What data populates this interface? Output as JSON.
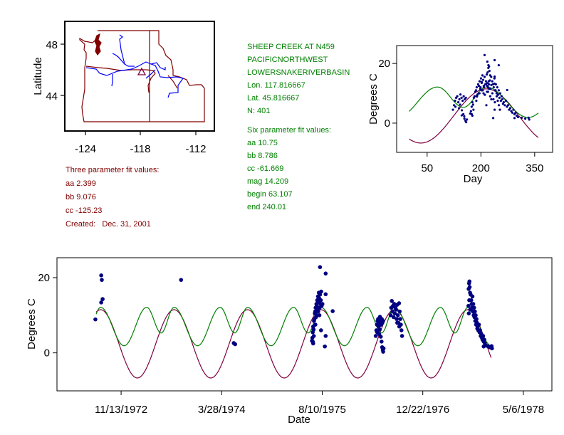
{
  "colors": {
    "three_fit": "#800040",
    "six_fit": "#008000",
    "points": "#000080",
    "info_red": "#800000",
    "info_green": "#008000",
    "map_border": "#800000",
    "map_river": "#0000ff"
  },
  "map": {
    "ylabel": "Latitude",
    "xticks": [
      "-124",
      "-118",
      "-112"
    ],
    "yticks": [
      "48",
      "44"
    ],
    "site_marker": "triangle"
  },
  "site_info": {
    "lines": [
      "SHEEP CREEK AT N459",
      "PACIFICNORTHWEST",
      "LOWERSNAKERIVERBASIN",
      "Lon. 117.816667",
      "Lat. 45.816667",
      "N: 401"
    ],
    "six_title": "Six parameter fit values:",
    "six_params": [
      "aa 10.75",
      "bb 8.786",
      "cc -61.669",
      "mag 14.209",
      "begin 63.107",
      "end 240.01"
    ]
  },
  "three_fit": {
    "title": "Three parameter fit values:",
    "params": [
      "aa 2.399",
      "bb 9.076",
      "cc -125.23"
    ],
    "created": "Created:   Dec. 31, 2001"
  },
  "chart_data": [
    {
      "type": "scatter",
      "id": "day-plot",
      "xlabel": "Day",
      "ylabel": "Degrees C",
      "xlim": [
        -35,
        400
      ],
      "ylim": [
        -9.8,
        26
      ],
      "xticks": [
        50,
        200,
        350
      ],
      "xtick_labels": [
        "50",
        "200",
        "350"
      ],
      "yticks": [
        0,
        20
      ],
      "ytick_labels": [
        "0",
        "20"
      ],
      "curve_range": [
        0,
        360
      ],
      "points_from": "observations (day-of-year)"
    },
    {
      "type": "scatter",
      "id": "date-plot",
      "xlabel": "Date",
      "ylabel": "Degrees C",
      "x_units": "days since 1/1/1972",
      "xlim": [
        -2,
        2459
      ],
      "ylim": [
        -10.1,
        25.3
      ],
      "xticks": [
        317,
        817,
        1317,
        1817,
        2317
      ],
      "xtick_labels": [
        "11/13/1972",
        "3/28/1974",
        "8/10/1975",
        "12/22/1976",
        "5/6/1978"
      ],
      "yticks": [
        0,
        20
      ],
      "ytick_labels": [
        "0",
        "20"
      ],
      "curve_range": [
        193,
        2157
      ]
    }
  ],
  "fits": {
    "three_param": {
      "mean": 2.4,
      "amplitude": 9.08,
      "peak_doy": 215
    },
    "six_param_extrema": [
      [
        79,
        12.1
      ],
      [
        151,
        5.3
      ],
      [
        215,
        12.1
      ],
      [
        332,
        1.9
      ],
      [
        444.25,
        12.1
      ]
    ]
  },
  "observations": [
    [
      189,
      8.9
    ],
    [
      218,
      20.6
    ],
    [
      221,
      19.4
    ],
    [
      225,
      14.3
    ],
    [
      218,
      13.4
    ],
    [
      615,
      19.4
    ],
    [
      877,
      2.6
    ],
    [
      884,
      2.3
    ],
    [
      1266,
      3.2
    ],
    [
      1268,
      4
    ],
    [
      1270,
      5.5
    ],
    [
      1272,
      7
    ],
    [
      1274,
      6.2
    ],
    [
      1276,
      8.5
    ],
    [
      1278,
      9
    ],
    [
      1280,
      10.5
    ],
    [
      1282,
      11
    ],
    [
      1284,
      12
    ],
    [
      1286,
      9.5
    ],
    [
      1288,
      13
    ],
    [
      1290,
      12.5
    ],
    [
      1292,
      14
    ],
    [
      1294,
      11.5
    ],
    [
      1296,
      15
    ],
    [
      1298,
      13.5
    ],
    [
      1300,
      16
    ],
    [
      1302,
      14.5
    ],
    [
      1304,
      12
    ],
    [
      1306,
      15.5
    ],
    [
      1308,
      13
    ],
    [
      1310,
      14
    ],
    [
      1312,
      16.3
    ],
    [
      1314,
      12.5
    ],
    [
      1270,
      3
    ],
    [
      1275,
      4.5
    ],
    [
      1283,
      7.5
    ],
    [
      1290,
      10
    ],
    [
      1297,
      11
    ],
    [
      1303,
      10
    ],
    [
      1318,
      13
    ],
    [
      1306,
      22.8
    ],
    [
      1334,
      21.1
    ],
    [
      1334,
      15.6
    ],
    [
      1369,
      11.1
    ],
    [
      1311,
      6
    ],
    [
      1334,
      4.5
    ],
    [
      1330,
      1.7
    ],
    [
      1272,
      2.5
    ],
    [
      1583,
      4.5
    ],
    [
      1586,
      6
    ],
    [
      1589,
      7.5
    ],
    [
      1592,
      8.5
    ],
    [
      1595,
      9
    ],
    [
      1598,
      7
    ],
    [
      1601,
      8
    ],
    [
      1604,
      9.6
    ],
    [
      1607,
      8.5
    ],
    [
      1610,
      7.5
    ],
    [
      1613,
      9
    ],
    [
      1616,
      8
    ],
    [
      1619,
      8.5
    ],
    [
      1590,
      5.5
    ],
    [
      1600,
      5
    ],
    [
      1608,
      4.3
    ],
    [
      1612,
      3
    ],
    [
      1615,
      1.5
    ],
    [
      1618,
      0.8
    ],
    [
      1620,
      0.3
    ],
    [
      1622,
      1.2
    ],
    [
      1603,
      6.2
    ],
    [
      1657,
      10
    ],
    [
      1660,
      12
    ],
    [
      1663,
      13.8
    ],
    [
      1666,
      11
    ],
    [
      1669,
      12.5
    ],
    [
      1672,
      9.5
    ],
    [
      1675,
      13
    ],
    [
      1678,
      10.5
    ],
    [
      1681,
      12
    ],
    [
      1684,
      11.5
    ],
    [
      1687,
      9
    ],
    [
      1690,
      12.8
    ],
    [
      1693,
      10
    ],
    [
      1696,
      8
    ],
    [
      1699,
      13.2
    ],
    [
      1702,
      11
    ],
    [
      1705,
      9
    ],
    [
      1708,
      7.5
    ],
    [
      1711,
      6
    ],
    [
      1714,
      4.5
    ],
    [
      1700,
      7
    ],
    [
      1690,
      8
    ],
    [
      2045,
      17
    ],
    [
      2047,
      18.5
    ],
    [
      2049,
      19
    ],
    [
      2050,
      17.5
    ],
    [
      2052,
      16
    ],
    [
      2048,
      14
    ],
    [
      2055,
      15.5
    ],
    [
      2058,
      14
    ],
    [
      2060,
      13
    ],
    [
      2062,
      12
    ],
    [
      2064,
      15
    ],
    [
      2066,
      11
    ],
    [
      2068,
      13
    ],
    [
      2070,
      10
    ],
    [
      2072,
      12
    ],
    [
      2074,
      9.5
    ],
    [
      2076,
      11
    ],
    [
      2078,
      8.5
    ],
    [
      2080,
      10
    ],
    [
      2082,
      7.5
    ],
    [
      2084,
      9
    ],
    [
      2086,
      8
    ],
    [
      2088,
      6.5
    ],
    [
      2090,
      7
    ],
    [
      2093,
      6
    ],
    [
      2096,
      7.5
    ],
    [
      2099,
      5.5
    ],
    [
      2102,
      6
    ],
    [
      2105,
      4.5
    ],
    [
      2108,
      5
    ],
    [
      2111,
      4
    ],
    [
      2114,
      3.5
    ],
    [
      2117,
      4.5
    ],
    [
      2120,
      3
    ],
    [
      2123,
      3.5
    ],
    [
      2126,
      2.5
    ],
    [
      2130,
      2
    ],
    [
      2140,
      1.8
    ],
    [
      2150,
      1.5
    ],
    [
      2159,
      1.8
    ],
    [
      2161,
      1.2
    ],
    [
      2120,
      1.7
    ],
    [
      2046,
      10.5
    ],
    [
      2053,
      11.5
    ],
    [
      2044,
      12.5
    ]
  ]
}
